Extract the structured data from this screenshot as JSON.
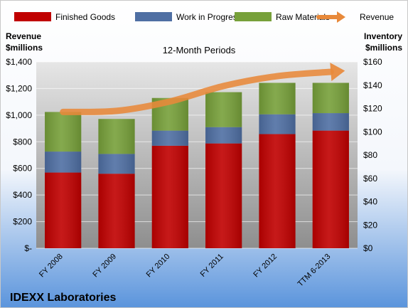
{
  "chart_data": {
    "type": "bar",
    "stacked": true,
    "subtitle": "12-Month Periods",
    "company": "IDEXX Laboratories",
    "ylabel_left": [
      "Revenue",
      "$millions"
    ],
    "ylabel_right": [
      "Inventory",
      "$millions"
    ],
    "categories": [
      "FY 2008",
      "FY 2009",
      "FY 2010",
      "FY 2011",
      "FY 2012",
      "TTM 6-2013"
    ],
    "series": [
      {
        "name": "Finished Goods",
        "kind": "bar",
        "axis": "right",
        "color": "#c00000",
        "values": [
          65,
          64,
          88,
          90,
          98,
          101
        ]
      },
      {
        "name": "Work in Progress",
        "kind": "bar",
        "axis": "right",
        "color": "#4f6fa3",
        "values": [
          18,
          17,
          13,
          14,
          17,
          15
        ]
      },
      {
        "name": "Raw Materials",
        "kind": "bar",
        "axis": "right",
        "color": "#77a03a",
        "values": [
          34,
          30,
          28,
          30,
          27,
          26
        ]
      },
      {
        "name": "Revenue",
        "kind": "line",
        "axis": "left",
        "color": "#e8893a",
        "values": [
          1024,
          1032,
          1103,
          1219,
          1293,
          1325
        ]
      }
    ],
    "left_axis": {
      "min": 0,
      "max": 1400,
      "step": 200,
      "tick_labels": [
        "$-",
        "$200",
        "$400",
        "$600",
        "$800",
        "$1,000",
        "$1,200",
        "$1,400"
      ]
    },
    "right_axis": {
      "min": 0,
      "max": 160,
      "step": 20,
      "tick_labels": [
        "$0",
        "$20",
        "$40",
        "$60",
        "$80",
        "$100",
        "$120",
        "$140",
        "$160"
      ]
    },
    "legend_position": "top",
    "grid": true
  }
}
